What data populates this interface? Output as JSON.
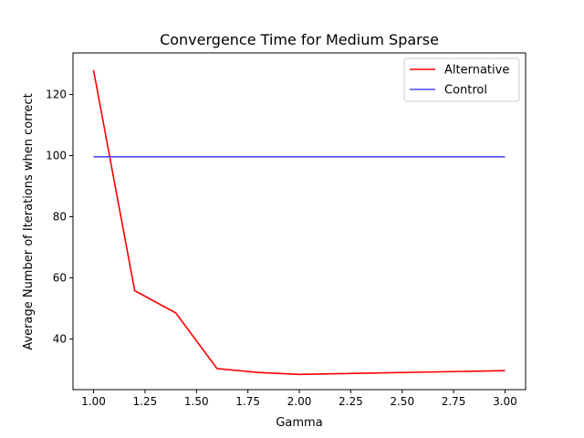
{
  "chart_data": {
    "type": "line",
    "title": "Convergence Time for Medium Sparse",
    "xlabel": "Gamma",
    "ylabel": "Average Number of Iterations when correct",
    "xlim": [
      0.9,
      3.1
    ],
    "ylim": [
      23.4,
      133.6
    ],
    "xticks": [
      1.0,
      1.25,
      1.5,
      1.75,
      2.0,
      2.25,
      2.5,
      2.75,
      3.0
    ],
    "xtick_labels": [
      "1.00",
      "1.25",
      "1.50",
      "1.75",
      "2.00",
      "2.25",
      "2.50",
      "2.75",
      "3.00"
    ],
    "yticks": [
      40,
      60,
      80,
      100,
      120
    ],
    "ytick_labels": [
      "40",
      "60",
      "80",
      "100",
      "120"
    ],
    "grid": false,
    "legend_position": "upper right",
    "series": [
      {
        "name": "Alternative",
        "color": "#ff0000",
        "x": [
          1.0,
          1.2,
          1.4,
          1.6,
          1.8,
          2.0,
          3.0
        ],
        "y": [
          128.0,
          55.8,
          48.5,
          30.3,
          29.0,
          28.4,
          29.6
        ]
      },
      {
        "name": "Control",
        "color": "#4a4aff",
        "x": [
          1.0,
          3.0
        ],
        "y": [
          99.6,
          99.6
        ]
      }
    ]
  }
}
